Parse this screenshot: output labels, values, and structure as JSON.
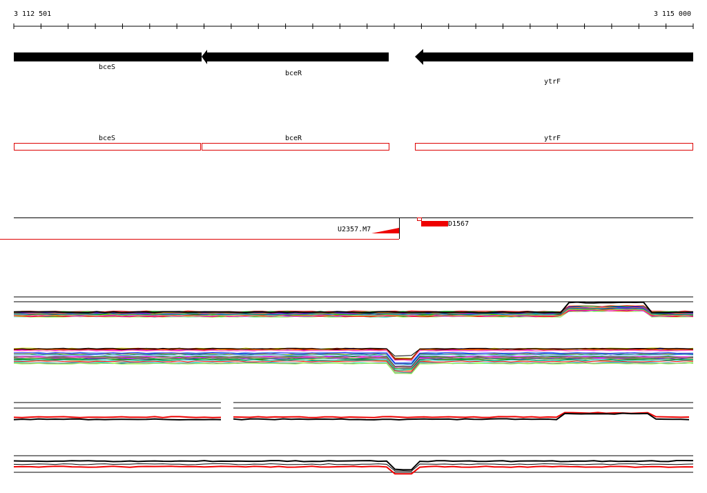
{
  "ruler": {
    "start": "3 112 501",
    "end": "3 115 000"
  },
  "genes": [
    {
      "name": "bceS"
    },
    {
      "name": "bceR"
    },
    {
      "name": "ytrF"
    }
  ],
  "cds": [
    {
      "name": "bceS"
    },
    {
      "name": "bceR"
    },
    {
      "name": "ytrF"
    }
  ],
  "probes": [
    {
      "name": "U2357.M7"
    },
    {
      "name": "D1567"
    }
  ]
}
